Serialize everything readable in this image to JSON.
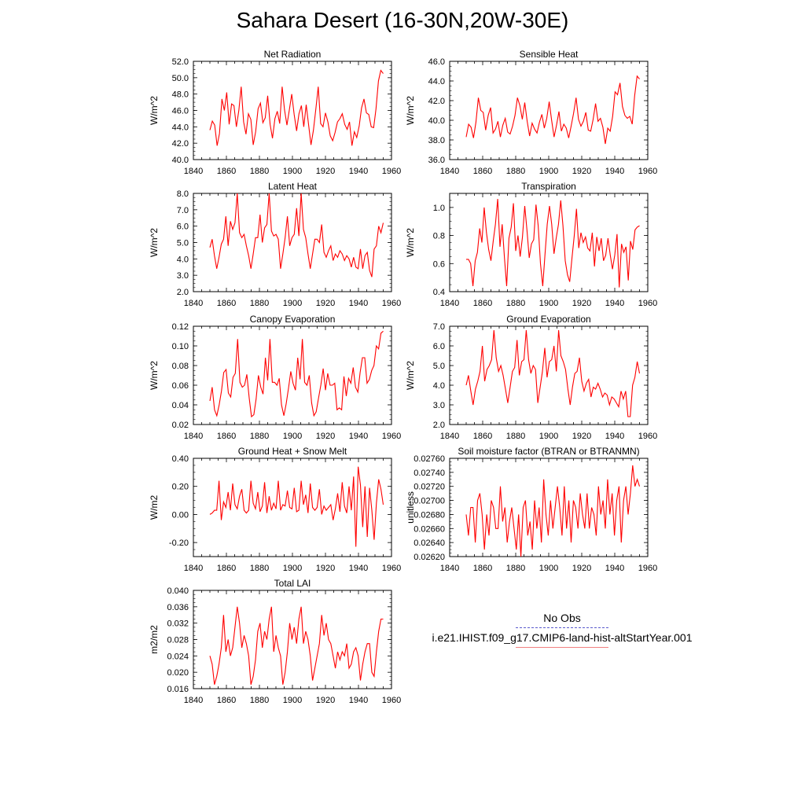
{
  "title": "Sahara Desert (16-30N,20W-30E)",
  "colors": {
    "model": "#ff0000",
    "obs": "#5a5acd",
    "legend_model": "#f08080"
  },
  "legend": {
    "obs_label": "No Obs",
    "model_label": "i.e21.IHIST.f09_g17.CMIP6-land-hist-altStartYear.001"
  },
  "chart_data": [
    {
      "type": "line",
      "title": "Net Radiation",
      "xlabel": "",
      "ylabel": "W/m^2",
      "xlim": [
        1840,
        1960
      ],
      "ylim": [
        40.0,
        52.0
      ],
      "xticks": [
        1840,
        1860,
        1880,
        1900,
        1920,
        1940,
        1960
      ],
      "yticks": [
        "40.0",
        "42.0",
        "44.0",
        "46.0",
        "48.0",
        "50.0",
        "52.0"
      ],
      "x_start": 1850,
      "x_end": 1955,
      "values": [
        43.6,
        44.7,
        44.2,
        41.7,
        43.2,
        47.4,
        46.0,
        48.2,
        44.3,
        46.8,
        46.6,
        44.0,
        46.0,
        48.9,
        44.6,
        43.1,
        45.6,
        44.9,
        41.8,
        43.4,
        46.2,
        46.9,
        44.5,
        45.1,
        47.8,
        44.3,
        42.6,
        45.0,
        45.9,
        44.4,
        48.9,
        46.1,
        44.2,
        46.1,
        48.0,
        45.5,
        43.5,
        45.6,
        46.6,
        44.0,
        46.7,
        44.2,
        41.8,
        43.6,
        46.2,
        48.9,
        44.4,
        44.0,
        45.7,
        44.6,
        42.9,
        42.3,
        43.3,
        44.6,
        45.0,
        45.6,
        44.3,
        43.7,
        44.6,
        41.7,
        43.4,
        42.7,
        44.1,
        46.3,
        47.4,
        45.7,
        45.5,
        44.0,
        43.9,
        46.2,
        49.6,
        50.9,
        50.5
      ]
    },
    {
      "type": "line",
      "title": "Sensible Heat",
      "xlabel": "",
      "ylabel": "W/m^2",
      "xlim": [
        1840,
        1960
      ],
      "ylim": [
        36.0,
        46.0
      ],
      "xticks": [
        1840,
        1860,
        1880,
        1900,
        1920,
        1940,
        1960
      ],
      "yticks": [
        "36.0",
        "38.0",
        "40.0",
        "42.0",
        "44.0",
        "46.0"
      ],
      "x_start": 1850,
      "x_end": 1955,
      "values": [
        38.3,
        39.6,
        39.3,
        38.2,
        39.8,
        42.3,
        41.0,
        40.8,
        39.0,
        40.5,
        41.3,
        38.7,
        39.1,
        39.9,
        38.3,
        39.5,
        40.2,
        38.8,
        38.6,
        39.4,
        40.5,
        42.3,
        41.5,
        40.1,
        41.8,
        39.9,
        38.4,
        39.7,
        39.1,
        38.7,
        39.8,
        40.6,
        39.2,
        40.2,
        41.9,
        40.0,
        38.3,
        39.5,
        40.9,
        38.9,
        39.6,
        39.2,
        38.2,
        39.4,
        40.7,
        42.3,
        40.1,
        39.4,
        39.9,
        40.8,
        39.0,
        38.9,
        40.1,
        41.7,
        39.9,
        40.2,
        39.3,
        37.6,
        39.2,
        38.9,
        40.4,
        42.9,
        42.6,
        43.8,
        41.4,
        40.5,
        40.2,
        40.4,
        39.6,
        42.5,
        44.5,
        44.2
      ]
    },
    {
      "type": "line",
      "title": "Latent Heat",
      "xlabel": "",
      "ylabel": "W/m^2",
      "xlim": [
        1840,
        1960
      ],
      "ylim": [
        2.0,
        8.0
      ],
      "xticks": [
        1840,
        1860,
        1880,
        1900,
        1920,
        1940,
        1960
      ],
      "yticks": [
        "2.0",
        "3.0",
        "4.0",
        "5.0",
        "6.0",
        "7.0",
        "8.0"
      ],
      "x_start": 1850,
      "x_end": 1955,
      "values": [
        4.7,
        5.2,
        4.2,
        3.4,
        4.1,
        4.9,
        5.2,
        6.6,
        4.8,
        6.3,
        5.8,
        6.2,
        8.0,
        5.6,
        5.3,
        5.5,
        4.8,
        4.2,
        3.4,
        4.3,
        5.3,
        5.3,
        6.7,
        5.0,
        5.9,
        6.1,
        8.0,
        5.7,
        5.4,
        5.5,
        5.2,
        3.4,
        4.3,
        5.3,
        6.6,
        4.8,
        5.3,
        5.5,
        7.1,
        5.4,
        8.0,
        5.8,
        5.3,
        4.3,
        3.4,
        4.3,
        5.2,
        5.2,
        5.0,
        6.1,
        4.4,
        4.1,
        4.5,
        4.8,
        3.9,
        4.3,
        4.1,
        4.5,
        4.3,
        3.9,
        4.2,
        4.0,
        3.5,
        4.1,
        3.5,
        3.4,
        4.6,
        3.4,
        4.2,
        4.4,
        3.3,
        2.9,
        4.6,
        4.8,
        6.0,
        5.6,
        6.2
      ]
    },
    {
      "type": "line",
      "title": "Transpiration",
      "xlabel": "",
      "ylabel": "W/m^2",
      "xlim": [
        1840,
        1960
      ],
      "ylim": [
        0.4,
        1.1
      ],
      "xticks": [
        1840,
        1860,
        1880,
        1900,
        1920,
        1940,
        1960
      ],
      "yticks": [
        "0.4",
        "0.6",
        "0.8",
        "1.0"
      ],
      "x_start": 1850,
      "x_end": 1955,
      "values": [
        0.63,
        0.63,
        0.6,
        0.44,
        0.62,
        0.68,
        0.85,
        0.75,
        1.0,
        0.82,
        0.7,
        0.62,
        0.76,
        0.88,
        1.06,
        0.72,
        0.88,
        0.64,
        0.44,
        0.78,
        0.86,
        1.03,
        0.69,
        0.8,
        0.65,
        0.79,
        1.01,
        0.84,
        0.64,
        0.74,
        0.77,
        1.02,
        0.87,
        0.6,
        0.44,
        0.66,
        0.88,
        1.01,
        0.88,
        0.67,
        0.78,
        0.88,
        1.05,
        0.87,
        0.62,
        0.52,
        0.47,
        0.64,
        0.8,
        0.99,
        0.71,
        0.82,
        0.75,
        0.79,
        0.71,
        0.69,
        0.82,
        0.58,
        0.79,
        0.69,
        0.78,
        0.62,
        0.66,
        0.78,
        0.66,
        0.56,
        0.66,
        0.81,
        0.43,
        0.74,
        0.68,
        0.72,
        0.48,
        0.76,
        0.7,
        0.84,
        0.86,
        0.87
      ]
    },
    {
      "type": "line",
      "title": "Canopy Evaporation",
      "xlabel": "",
      "ylabel": "W/m^2",
      "xlim": [
        1840,
        1960
      ],
      "ylim": [
        0.02,
        0.12
      ],
      "xticks": [
        1840,
        1860,
        1880,
        1900,
        1920,
        1940,
        1960
      ],
      "yticks": [
        "0.02",
        "0.04",
        "0.06",
        "0.08",
        "0.10",
        "0.12"
      ],
      "x_start": 1850,
      "x_end": 1955,
      "values": [
        0.044,
        0.058,
        0.035,
        0.029,
        0.04,
        0.054,
        0.073,
        0.076,
        0.052,
        0.048,
        0.068,
        0.072,
        0.107,
        0.063,
        0.058,
        0.06,
        0.071,
        0.047,
        0.028,
        0.03,
        0.046,
        0.07,
        0.058,
        0.051,
        0.088,
        0.065,
        0.107,
        0.063,
        0.063,
        0.06,
        0.067,
        0.04,
        0.029,
        0.041,
        0.057,
        0.074,
        0.062,
        0.055,
        0.088,
        0.066,
        0.107,
        0.063,
        0.06,
        0.07,
        0.042,
        0.029,
        0.033,
        0.047,
        0.06,
        0.077,
        0.055,
        0.072,
        0.06,
        0.06,
        0.062,
        0.035,
        0.037,
        0.035,
        0.069,
        0.049,
        0.067,
        0.062,
        0.078,
        0.058,
        0.053,
        0.073,
        0.088,
        0.088,
        0.062,
        0.066,
        0.075,
        0.08,
        0.1,
        0.097,
        0.113,
        0.115
      ]
    },
    {
      "type": "line",
      "title": "Ground Evaporation",
      "xlabel": "",
      "ylabel": "W/m^2",
      "xlim": [
        1840,
        1960
      ],
      "ylim": [
        2.0,
        7.0
      ],
      "xticks": [
        1840,
        1860,
        1880,
        1900,
        1920,
        1940,
        1960
      ],
      "yticks": [
        "2.0",
        "3.0",
        "4.0",
        "5.0",
        "6.0",
        "7.0"
      ],
      "x_start": 1850,
      "x_end": 1955,
      "values": [
        4.0,
        4.5,
        3.7,
        3.0,
        3.8,
        4.2,
        4.7,
        6.0,
        4.2,
        4.8,
        5.0,
        5.3,
        6.8,
        5.4,
        4.7,
        5.0,
        4.5,
        3.8,
        3.1,
        3.9,
        4.7,
        4.9,
        6.3,
        4.5,
        5.2,
        5.3,
        6.8,
        5.3,
        4.6,
        5.0,
        4.8,
        3.1,
        3.9,
        4.7,
        5.9,
        4.4,
        5.2,
        5.3,
        6.0,
        4.7,
        6.8,
        5.5,
        5.2,
        4.8,
        3.8,
        3.0,
        3.9,
        4.6,
        4.7,
        5.4,
        4.2,
        3.7,
        4.1,
        4.3,
        3.4,
        3.9,
        3.8,
        4.1,
        3.8,
        3.4,
        3.6,
        3.5,
        3.0,
        3.4,
        3.3,
        3.1,
        2.9,
        3.7,
        3.3,
        3.7,
        2.4,
        2.4,
        4.0,
        4.4,
        5.2,
        4.6
      ]
    },
    {
      "type": "line",
      "title": "Ground Heat + Snow Melt",
      "xlabel": "",
      "ylabel": "W/m2",
      "xlim": [
        1840,
        1960
      ],
      "ylim": [
        -0.3,
        0.4
      ],
      "xticks": [
        1840,
        1860,
        1880,
        1900,
        1920,
        1940,
        1960
      ],
      "yticks": [
        "-0.20",
        "0.00",
        "0.20",
        "0.40"
      ],
      "x_start": 1850,
      "x_end": 1955,
      "values": [
        0.0,
        0.01,
        0.03,
        0.03,
        0.24,
        -0.04,
        0.09,
        0.05,
        0.16,
        0.03,
        0.22,
        0.07,
        0.04,
        0.13,
        0.18,
        0.03,
        0.01,
        0.03,
        0.24,
        0.08,
        0.04,
        0.16,
        0.02,
        0.06,
        0.23,
        0.01,
        0.13,
        0.03,
        0.08,
        0.04,
        0.24,
        0.03,
        0.07,
        0.06,
        0.17,
        0.05,
        0.04,
        0.19,
        0.02,
        0.03,
        0.24,
        0.07,
        0.14,
        0.01,
        0.22,
        0.05,
        0.03,
        0.05,
        0.18,
        0.0,
        0.06,
        0.03,
        0.05,
        0.07,
        -0.04,
        0.04,
        0.15,
        0.02,
        0.23,
        0.06,
        0.01,
        0.2,
        0.03,
        0.27,
        -0.23,
        0.34,
        0.21,
        -0.09,
        0.2,
        -0.16,
        0.19,
        0.03,
        -0.18,
        0.08,
        0.25,
        0.18,
        0.07
      ]
    },
    {
      "type": "line",
      "title": "Soil moisture factor (BTRAN or BTRANMN)",
      "xlabel": "",
      "ylabel": "unitless",
      "xlim": [
        1840,
        1960
      ],
      "ylim": [
        0.0262,
        0.0276
      ],
      "xticks": [
        1840,
        1860,
        1880,
        1900,
        1920,
        1940,
        1960
      ],
      "yticks": [
        "0.02620",
        "0.02640",
        "0.02660",
        "0.02680",
        "0.02700",
        "0.02720",
        "0.02740",
        "0.02760"
      ],
      "x_start": 1850,
      "x_end": 1955,
      "values": [
        0.0268,
        0.0265,
        0.0269,
        0.0269,
        0.0264,
        0.027,
        0.0271,
        0.0268,
        0.0263,
        0.0268,
        0.0265,
        0.027,
        0.0269,
        0.0266,
        0.0266,
        0.0272,
        0.0267,
        0.0269,
        0.0264,
        0.0267,
        0.0269,
        0.0266,
        0.0263,
        0.0268,
        0.0262,
        0.0269,
        0.027,
        0.0265,
        0.0267,
        0.0263,
        0.027,
        0.0266,
        0.0269,
        0.0264,
        0.0273,
        0.0268,
        0.0265,
        0.027,
        0.0266,
        0.0269,
        0.0272,
        0.0269,
        0.0265,
        0.0272,
        0.0266,
        0.027,
        0.0264,
        0.027,
        0.0269,
        0.0266,
        0.0271,
        0.0268,
        0.0266,
        0.0271,
        0.0266,
        0.0269,
        0.0268,
        0.0265,
        0.0272,
        0.0268,
        0.027,
        0.0266,
        0.0273,
        0.0268,
        0.0271,
        0.0265,
        0.027,
        0.0272,
        0.0264,
        0.027,
        0.0272,
        0.0268,
        0.0271,
        0.0275,
        0.0272,
        0.0273,
        0.0272
      ]
    },
    {
      "type": "line",
      "title": "Total LAI",
      "xlabel": "",
      "ylabel": "m2/m2",
      "xlim": [
        1840,
        1960
      ],
      "ylim": [
        0.016,
        0.04
      ],
      "xticks": [
        1840,
        1860,
        1880,
        1900,
        1920,
        1940,
        1960
      ],
      "yticks": [
        "0.016",
        "0.020",
        "0.024",
        "0.028",
        "0.032",
        "0.036",
        "0.040"
      ],
      "x_start": 1850,
      "x_end": 1955,
      "values": [
        0.024,
        0.022,
        0.017,
        0.019,
        0.022,
        0.026,
        0.034,
        0.025,
        0.028,
        0.024,
        0.026,
        0.031,
        0.036,
        0.032,
        0.026,
        0.029,
        0.027,
        0.024,
        0.017,
        0.019,
        0.023,
        0.03,
        0.032,
        0.026,
        0.03,
        0.028,
        0.033,
        0.036,
        0.025,
        0.029,
        0.026,
        0.024,
        0.017,
        0.02,
        0.025,
        0.032,
        0.028,
        0.031,
        0.027,
        0.033,
        0.036,
        0.027,
        0.03,
        0.028,
        0.024,
        0.018,
        0.021,
        0.024,
        0.027,
        0.034,
        0.029,
        0.032,
        0.028,
        0.027,
        0.024,
        0.021,
        0.025,
        0.023,
        0.025,
        0.024,
        0.027,
        0.021,
        0.022,
        0.025,
        0.026,
        0.024,
        0.018,
        0.022,
        0.025,
        0.027,
        0.027,
        0.02,
        0.019,
        0.025,
        0.03,
        0.033,
        0.033
      ]
    }
  ]
}
